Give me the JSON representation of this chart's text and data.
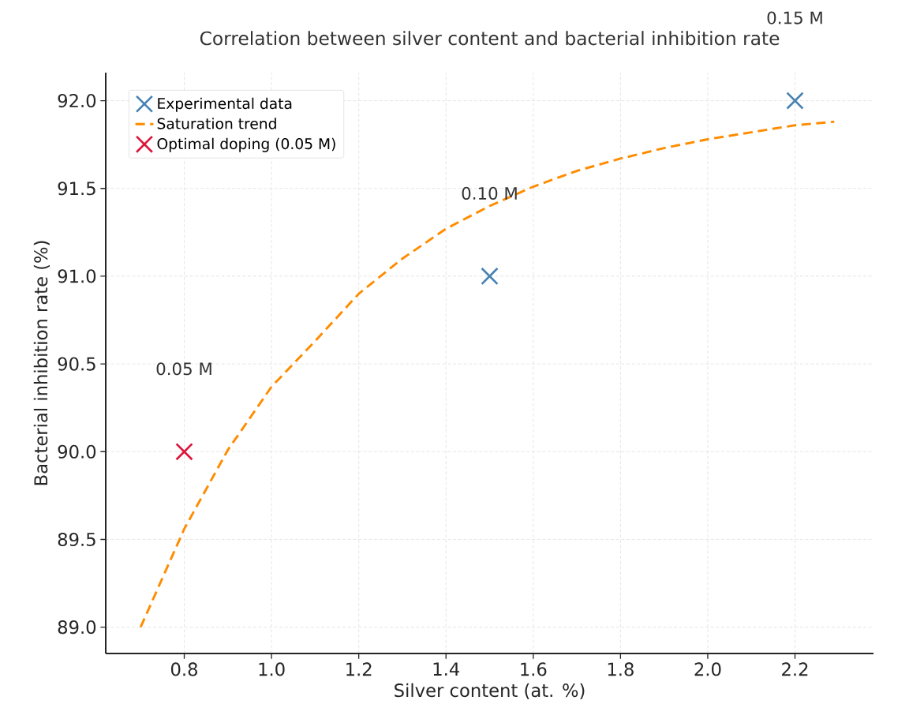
{
  "chart_data": {
    "type": "scatter",
    "title": "Correlation between silver content and bacterial inhibition rate",
    "xlabel": "Silver content (at. %)",
    "ylabel": "Bacterial inhibition rate (%)",
    "series": [
      {
        "name": "Experimental data",
        "color": "#4682b4",
        "x": [
          1.5,
          2.2
        ],
        "values": [
          91.0,
          92.0
        ]
      },
      {
        "name": "Saturation trend",
        "type": "line",
        "color": "#ff8c00",
        "line_style": "dashed",
        "marker": "none",
        "x": [
          0.7,
          0.8,
          0.9,
          1.0,
          1.1,
          1.2,
          1.3,
          1.4,
          1.5,
          1.6,
          1.7,
          1.8,
          1.9,
          2.0,
          2.1,
          2.2,
          2.29
        ],
        "values": [
          89.0,
          89.56,
          90.01,
          90.37,
          90.63,
          90.9,
          91.1,
          91.27,
          91.4,
          91.51,
          91.6,
          91.67,
          91.73,
          91.78,
          91.82,
          91.86,
          91.88
        ]
      },
      {
        "name": "Optimal doping (0.05 M)",
        "color": "#dc143c",
        "x": [
          0.8
        ],
        "values": [
          90.0
        ]
      }
    ],
    "annotations": [
      "0.05 M",
      "0.10 M",
      "0.15 M"
    ],
    "xlim": [
      0.62,
      2.38
    ],
    "ylim": [
      88.85,
      92.16
    ],
    "xticks": [
      {
        "value": 0.8,
        "label": "0.8"
      },
      {
        "value": 1.0,
        "label": "1.0"
      },
      {
        "value": 1.2,
        "label": "1.2"
      },
      {
        "value": 1.4,
        "label": "1.4"
      },
      {
        "value": 1.6,
        "label": "1.6"
      },
      {
        "value": 1.8,
        "label": "1.8"
      },
      {
        "value": 2.0,
        "label": "2.0"
      },
      {
        "value": 2.2,
        "label": "2.2"
      }
    ],
    "yticks": [
      {
        "value": 89.0,
        "label": "89.0"
      },
      {
        "value": 89.5,
        "label": "89.5"
      },
      {
        "value": 90.0,
        "label": "90.0"
      },
      {
        "value": 90.5,
        "label": "90.5"
      },
      {
        "value": 91.0,
        "label": "91.0"
      },
      {
        "value": 91.5,
        "label": "91.5"
      },
      {
        "value": 92.0,
        "label": "92.0"
      }
    ],
    "grid": true,
    "legend": "top left",
    "marker": "cross"
  }
}
